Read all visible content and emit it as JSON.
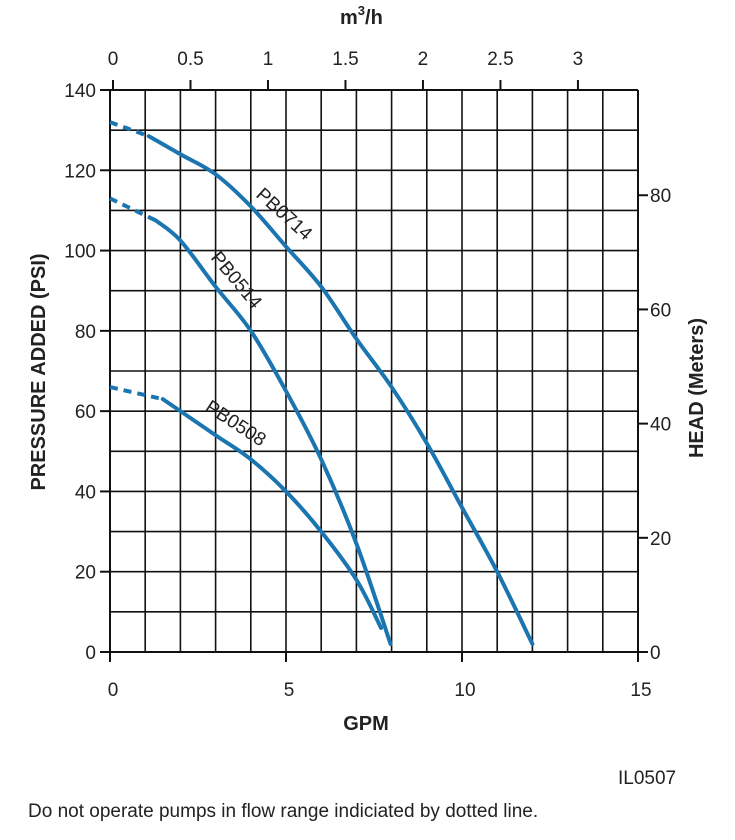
{
  "chart_data": {
    "type": "line",
    "xlabel": "GPM",
    "x2label": "m³/h",
    "ylabel": "PRESSURE ADDED (PSI)",
    "y2label": "HEAD (Meters)",
    "xlim": [
      0,
      15
    ],
    "ylim": [
      0,
      140
    ],
    "x_ticks": [
      0,
      5,
      10,
      15
    ],
    "y_ticks": [
      0,
      20,
      40,
      60,
      80,
      100,
      120,
      140
    ],
    "x2_ticks": [
      "0",
      "0.5",
      "1",
      "1.5",
      "2",
      "2.5",
      "3"
    ],
    "x2_tick_values": [
      0,
      0.5,
      1,
      1.5,
      2,
      2.5,
      3
    ],
    "y2_ticks": [
      "0",
      "20",
      "40",
      "60",
      "80"
    ],
    "y2_tick_values": [
      0,
      20,
      40,
      60,
      80
    ],
    "grid": true,
    "grid_step_x": 1,
    "grid_step_y": 10,
    "line_color": "#1a75b0",
    "series": [
      {
        "name": "PB0714",
        "dotted_until": 1.1,
        "x": [
          0,
          1.1,
          2,
          3,
          4,
          5,
          6,
          7,
          8,
          9,
          10,
          11,
          12
        ],
        "y": [
          132,
          128.5,
          124,
          119,
          111,
          101,
          91,
          78,
          66,
          52,
          36,
          20,
          2
        ]
      },
      {
        "name": "PB0514",
        "dotted_until": 1.3,
        "x": [
          0,
          1.3,
          2,
          3,
          4,
          5,
          6,
          7,
          7.97
        ],
        "y": [
          113,
          107.5,
          102.5,
          91,
          80,
          65,
          48,
          27,
          2
        ]
      },
      {
        "name": "PB0508",
        "dotted_until": 1.5,
        "x": [
          0,
          1.5,
          2,
          3,
          4,
          5,
          6,
          7,
          7.7
        ],
        "y": [
          66,
          63,
          60,
          54,
          48,
          40,
          30,
          18,
          6
        ]
      }
    ]
  },
  "figure_id": "IL0507",
  "footnote": "Do not operate pumps in flow range indiciated by dotted line."
}
